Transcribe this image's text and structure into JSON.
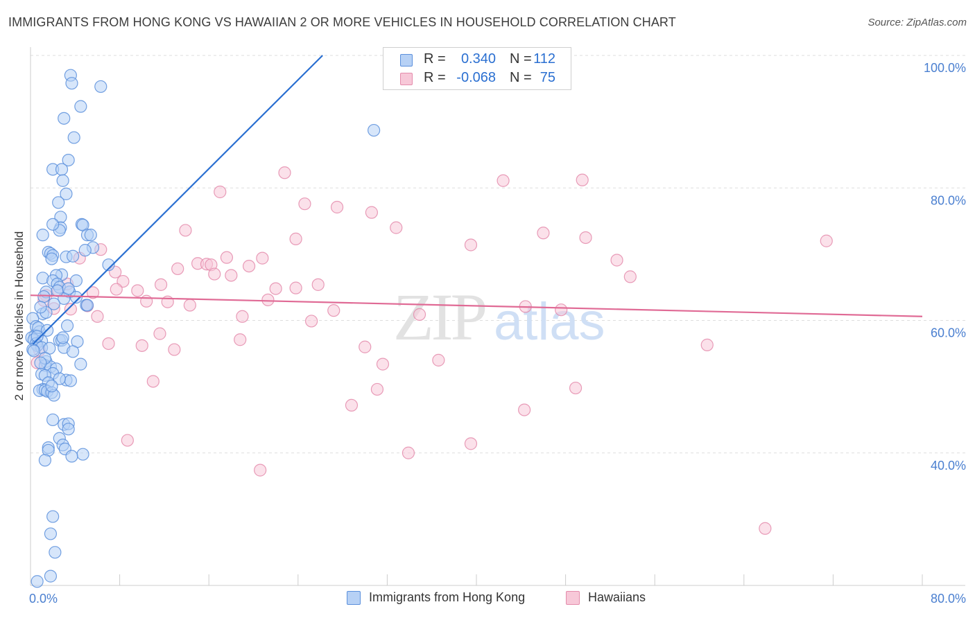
{
  "title": "IMMIGRANTS FROM HONG KONG VS HAWAIIAN 2 OR MORE VEHICLES IN HOUSEHOLD CORRELATION CHART",
  "source": "Source: ZipAtlas.com",
  "watermark": {
    "zip": "ZIP",
    "atlas": "atlas"
  },
  "colors": {
    "blue_fill": "#b7d1f5",
    "blue_stroke": "#5a8fdc",
    "blue_line": "#2a6fd1",
    "pink_fill": "#f7c8d8",
    "pink_stroke": "#e48bab",
    "pink_line": "#e06a95",
    "grid": "#dddddd",
    "tick_text": "#4a7fd0"
  },
  "legend_top": {
    "rows": [
      {
        "r_label": "R =",
        "r_value": "0.340",
        "n_label": "N =",
        "n_value": "112"
      },
      {
        "r_label": "R =",
        "r_value": "-0.068",
        "n_label": "N =",
        "n_value": "75"
      }
    ]
  },
  "chart_data": {
    "type": "scatter",
    "title": "IMMIGRANTS FROM HONG KONG VS HAWAIIAN 2 OR MORE VEHICLES IN HOUSEHOLD CORRELATION CHART",
    "xlabel": "",
    "ylabel": "2 or more Vehicles in Household",
    "xlim": [
      0,
      80
    ],
    "ylim": [
      20,
      100
    ],
    "x_ticks": [
      {
        "value": 0,
        "label": "0.0%"
      },
      {
        "value": 80,
        "label": "80.0%"
      }
    ],
    "x_minor_ticks": [
      8,
      16,
      24,
      32,
      40,
      48,
      56,
      64,
      72,
      80
    ],
    "y_ticks": [
      {
        "value": 40,
        "label": "40.0%"
      },
      {
        "value": 60,
        "label": "60.0%"
      },
      {
        "value": 80,
        "label": "80.0%"
      },
      {
        "value": 100,
        "label": "100.0%"
      }
    ],
    "grid": true,
    "legend_position": "top-center",
    "series": [
      {
        "name": "Immigrants from Hong Kong",
        "color": "#5a8fdc",
        "trend": {
          "x": [
            0.2,
            26.2
          ],
          "y": [
            56.4,
            100
          ]
        },
        "points": [
          [
            3.6,
            97
          ],
          [
            3.7,
            95.8
          ],
          [
            6.3,
            95.3
          ],
          [
            4.5,
            92.3
          ],
          [
            3.0,
            90.5
          ],
          [
            30.8,
            88.7
          ],
          [
            3.9,
            87.6
          ],
          [
            3.4,
            84.2
          ],
          [
            2.0,
            82.8
          ],
          [
            2.8,
            82.8
          ],
          [
            2.9,
            81.1
          ],
          [
            3.2,
            79.1
          ],
          [
            2.5,
            77.8
          ],
          [
            2.7,
            75.6
          ],
          [
            2.7,
            74.0
          ],
          [
            2.6,
            73.6
          ],
          [
            2.0,
            74.5
          ],
          [
            4.6,
            74.5
          ],
          [
            4.7,
            74.4
          ],
          [
            1.1,
            72.9
          ],
          [
            5.1,
            72.9
          ],
          [
            5.4,
            72.9
          ],
          [
            5.6,
            71.0
          ],
          [
            4.9,
            70.6
          ],
          [
            1.6,
            70.3
          ],
          [
            1.8,
            70.1
          ],
          [
            2.0,
            69.8
          ],
          [
            1.9,
            69.3
          ],
          [
            3.2,
            69.6
          ],
          [
            3.8,
            69.7
          ],
          [
            7.0,
            68.4
          ],
          [
            2.8,
            66.9
          ],
          [
            2.3,
            66.8
          ],
          [
            1.1,
            66.4
          ],
          [
            4.1,
            66.0
          ],
          [
            2.0,
            66.0
          ],
          [
            2.4,
            65.5
          ],
          [
            2.6,
            65.0
          ],
          [
            1.4,
            64.3
          ],
          [
            3.5,
            64.3
          ],
          [
            1.2,
            63.6
          ],
          [
            4.1,
            63.5
          ],
          [
            3.0,
            63.3
          ],
          [
            5.0,
            62.3
          ],
          [
            5.1,
            62.3
          ],
          [
            1.1,
            61.0
          ],
          [
            1.4,
            61.2
          ],
          [
            0.2,
            60.3
          ],
          [
            0.5,
            59.1
          ],
          [
            3.3,
            59.2
          ],
          [
            0.8,
            58.3
          ],
          [
            0.4,
            57.7
          ],
          [
            0.1,
            57.4
          ],
          [
            0.3,
            57.1
          ],
          [
            1.0,
            56.9
          ],
          [
            2.6,
            57.0
          ],
          [
            2.8,
            57.0
          ],
          [
            0.5,
            56.5
          ],
          [
            0.6,
            56.2
          ],
          [
            1.0,
            55.9
          ],
          [
            0.2,
            55.6
          ],
          [
            3.0,
            55.9
          ],
          [
            1.7,
            55.8
          ],
          [
            0.3,
            55.4
          ],
          [
            1.4,
            53.8
          ],
          [
            1.3,
            53.2
          ],
          [
            4.5,
            53.4
          ],
          [
            1.8,
            53.0
          ],
          [
            2.3,
            52.7
          ],
          [
            2.0,
            52.0
          ],
          [
            1.0,
            51.9
          ],
          [
            1.3,
            51.7
          ],
          [
            3.2,
            51.0
          ],
          [
            3.6,
            50.9
          ],
          [
            1.6,
            50.6
          ],
          [
            1.1,
            49.6
          ],
          [
            0.8,
            49.4
          ],
          [
            1.3,
            49.5
          ],
          [
            1.5,
            49.3
          ],
          [
            1.9,
            49.1
          ],
          [
            2.1,
            48.7
          ],
          [
            2.0,
            45.0
          ],
          [
            3.0,
            44.3
          ],
          [
            3.4,
            44.4
          ],
          [
            3.4,
            43.6
          ],
          [
            2.6,
            42.2
          ],
          [
            1.6,
            40.8
          ],
          [
            2.9,
            41.2
          ],
          [
            3.1,
            40.6
          ],
          [
            1.6,
            40.4
          ],
          [
            4.7,
            39.8
          ],
          [
            3.7,
            39.5
          ],
          [
            1.3,
            38.9
          ],
          [
            2.0,
            30.4
          ],
          [
            1.8,
            27.8
          ],
          [
            2.2,
            25.0
          ],
          [
            1.8,
            21.4
          ],
          [
            0.6,
            20.6
          ],
          [
            2.4,
            64.5
          ],
          [
            3.4,
            64.8
          ],
          [
            2.1,
            62.5
          ],
          [
            0.9,
            62.0
          ],
          [
            0.7,
            58.9
          ],
          [
            1.5,
            58.5
          ],
          [
            2.9,
            57.4
          ],
          [
            0.6,
            57.6
          ],
          [
            4.2,
            56.8
          ],
          [
            1.3,
            54.3
          ],
          [
            3.8,
            55.3
          ],
          [
            0.9,
            53.6
          ],
          [
            2.6,
            51.2
          ],
          [
            1.9,
            50.1
          ]
        ]
      },
      {
        "name": "Hawaiians",
        "color": "#e48bab",
        "trend": {
          "x": [
            0,
            80
          ],
          "y": [
            63.8,
            60.6
          ]
        },
        "points": [
          [
            22.8,
            82.3
          ],
          [
            42.4,
            81.1
          ],
          [
            49.5,
            81.2
          ],
          [
            17.0,
            79.4
          ],
          [
            24.6,
            77.6
          ],
          [
            27.5,
            77.1
          ],
          [
            30.6,
            76.3
          ],
          [
            32.8,
            74.0
          ],
          [
            13.9,
            73.6
          ],
          [
            46.0,
            73.2
          ],
          [
            23.8,
            72.3
          ],
          [
            49.8,
            72.5
          ],
          [
            71.4,
            72.0
          ],
          [
            39.5,
            71.4
          ],
          [
            6.3,
            70.7
          ],
          [
            4.4,
            69.4
          ],
          [
            17.6,
            69.5
          ],
          [
            20.8,
            69.4
          ],
          [
            52.6,
            69.1
          ],
          [
            15.0,
            68.6
          ],
          [
            15.8,
            68.5
          ],
          [
            16.2,
            68.4
          ],
          [
            19.6,
            68.2
          ],
          [
            13.2,
            67.8
          ],
          [
            7.6,
            67.3
          ],
          [
            16.5,
            67.0
          ],
          [
            18.0,
            66.8
          ],
          [
            53.8,
            66.6
          ],
          [
            8.3,
            65.9
          ],
          [
            3.3,
            65.5
          ],
          [
            11.7,
            65.4
          ],
          [
            25.8,
            65.4
          ],
          [
            22.0,
            64.8
          ],
          [
            23.8,
            64.9
          ],
          [
            7.7,
            64.7
          ],
          [
            9.6,
            64.5
          ],
          [
            5.6,
            64.2
          ],
          [
            2.5,
            64.5
          ],
          [
            1.4,
            63.8
          ],
          [
            1.2,
            63.0
          ],
          [
            21.3,
            63.1
          ],
          [
            10.4,
            62.9
          ],
          [
            12.3,
            62.8
          ],
          [
            14.3,
            62.3
          ],
          [
            5.1,
            62.2
          ],
          [
            2.1,
            61.8
          ],
          [
            3.6,
            61.7
          ],
          [
            44.4,
            62.1
          ],
          [
            47.6,
            61.6
          ],
          [
            27.2,
            61.5
          ],
          [
            34.9,
            60.9
          ],
          [
            19.0,
            60.6
          ],
          [
            6.0,
            60.6
          ],
          [
            25.2,
            59.9
          ],
          [
            11.6,
            58.0
          ],
          [
            18.8,
            57.1
          ],
          [
            7.0,
            56.5
          ],
          [
            10.0,
            56.2
          ],
          [
            30.0,
            56.0
          ],
          [
            60.7,
            56.3
          ],
          [
            12.9,
            55.6
          ],
          [
            0.8,
            55.5
          ],
          [
            0.6,
            53.6
          ],
          [
            31.6,
            53.4
          ],
          [
            36.6,
            54.0
          ],
          [
            11.0,
            50.8
          ],
          [
            31.1,
            49.6
          ],
          [
            48.9,
            49.8
          ],
          [
            28.8,
            47.2
          ],
          [
            44.3,
            46.5
          ],
          [
            8.7,
            41.9
          ],
          [
            39.5,
            41.4
          ],
          [
            33.9,
            40.0
          ],
          [
            20.6,
            37.4
          ],
          [
            65.9,
            28.6
          ]
        ]
      }
    ]
  },
  "legend_bottom": [
    {
      "label": "Immigrants from Hong Kong"
    },
    {
      "label": "Hawaiians"
    }
  ]
}
